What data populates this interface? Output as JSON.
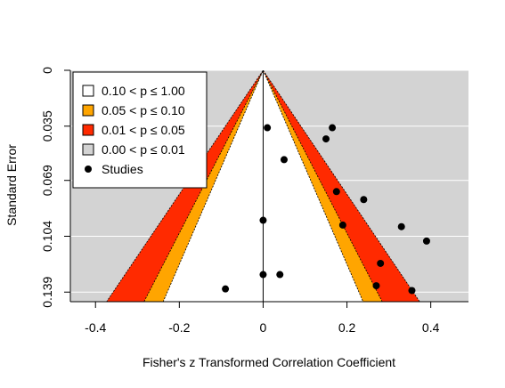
{
  "chart_data": {
    "type": "scatter",
    "subtype": "contour-enhanced funnel plot",
    "xlabel": "Fisher's z Transformed Correlation Coefficient",
    "ylabel": "Standard Error",
    "xlim": [
      -0.46,
      0.49
    ],
    "ylim": [
      0.145,
      0
    ],
    "x_ticks": [
      -0.4,
      -0.2,
      0,
      0.2,
      0.4
    ],
    "x_tick_labels": [
      "-0.4",
      "-0.2",
      "0",
      "0.2",
      "0.4"
    ],
    "y_ticks": [
      0,
      0.035,
      0.069,
      0.104,
      0.139
    ],
    "y_tick_labels": [
      "0",
      "0.035",
      "0.069",
      "0.104",
      "0.139"
    ],
    "y_reversed": true,
    "grid": "horizontal",
    "background_color": "#d3d3d3",
    "reference_x": 0,
    "contours": [
      {
        "label": "0.10 < p ≤ 1.00",
        "color": "#ffffff",
        "z": 1.645
      },
      {
        "label": "0.05 < p ≤ 0.10",
        "color": "#ffa500",
        "z": 1.96
      },
      {
        "label": "0.01 < p ≤ 0.05",
        "color": "#ff2a00",
        "z": 2.576
      },
      {
        "label": "0.00 < p ≤ 0.01",
        "color": "#d3d3d3",
        "z": null
      }
    ],
    "legend": {
      "position": "top-left",
      "entries": [
        {
          "label": "0.10 < p ≤ 1.00",
          "marker": "square",
          "color": "#ffffff"
        },
        {
          "label": "0.05 < p ≤ 0.10",
          "marker": "square",
          "color": "#ffa500"
        },
        {
          "label": "0.01 < p ≤ 0.05",
          "marker": "square",
          "color": "#ff2a00"
        },
        {
          "label": "0.00 < p ≤ 0.01",
          "marker": "square",
          "color": "#d3d3d3"
        },
        {
          "label": "Studies",
          "marker": "circle",
          "color": "#000000"
        }
      ]
    },
    "points": [
      {
        "x": 0.01,
        "y": 0.036
      },
      {
        "x": 0.165,
        "y": 0.036
      },
      {
        "x": 0.15,
        "y": 0.043
      },
      {
        "x": 0.05,
        "y": 0.056
      },
      {
        "x": 0.175,
        "y": 0.076
      },
      {
        "x": 0.24,
        "y": 0.081
      },
      {
        "x": 0.0,
        "y": 0.094
      },
      {
        "x": 0.19,
        "y": 0.097
      },
      {
        "x": 0.33,
        "y": 0.098
      },
      {
        "x": 0.39,
        "y": 0.107
      },
      {
        "x": 0.28,
        "y": 0.121
      },
      {
        "x": 0.0,
        "y": 0.128
      },
      {
        "x": 0.04,
        "y": 0.128
      },
      {
        "x": 0.27,
        "y": 0.135
      },
      {
        "x": 0.355,
        "y": 0.138
      },
      {
        "x": -0.09,
        "y": 0.137
      }
    ]
  }
}
